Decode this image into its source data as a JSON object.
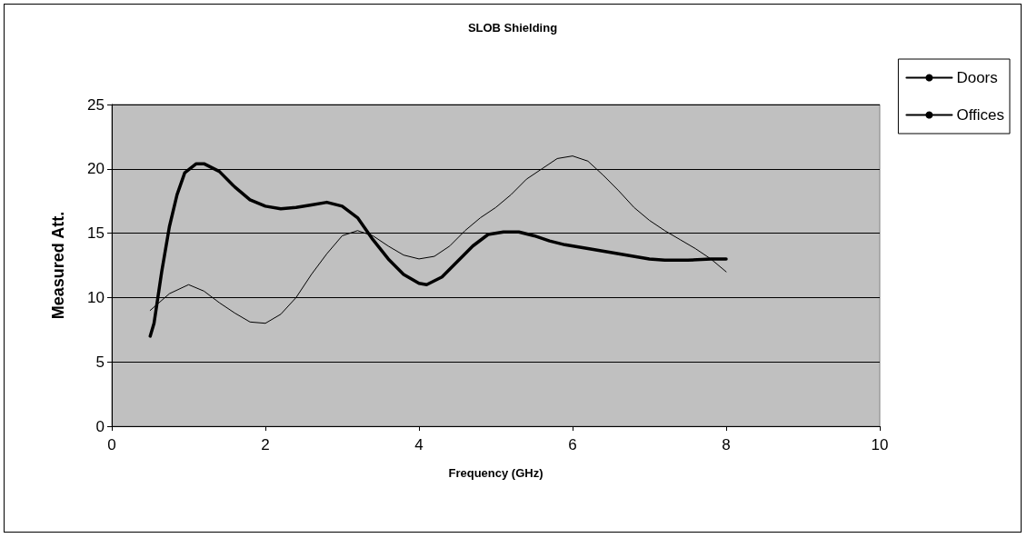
{
  "chart_data": {
    "type": "line",
    "title": "SLOB Shielding",
    "xlabel": "Frequency (GHz)",
    "ylabel": "Measured Att.",
    "xlim": [
      0,
      10
    ],
    "xticks": [
      0,
      2,
      4,
      6,
      8,
      10
    ],
    "ylim": [
      0,
      25
    ],
    "yticks": [
      0,
      5,
      10,
      15,
      20,
      25
    ],
    "grid": "y",
    "legend": "top right",
    "marker": "none",
    "line_style": "solid",
    "series": [
      {
        "name": "Doors",
        "color": "#000000",
        "x": [
          0.5,
          0.75,
          1.0,
          1.2,
          1.4,
          1.6,
          1.8,
          2.0,
          2.2,
          2.4,
          2.6,
          2.8,
          3.0,
          3.2,
          3.4,
          3.6,
          3.8,
          4.0,
          4.2,
          4.4,
          4.6,
          4.8,
          5.0,
          5.2,
          5.4,
          5.6,
          5.8,
          6.0,
          6.2,
          6.4,
          6.6,
          6.8,
          7.0,
          7.2,
          7.4,
          7.6,
          7.8,
          8.0
        ],
        "values": [
          9,
          10.3,
          11,
          10.5,
          9.6,
          8.8,
          8.1,
          8,
          8.7,
          10,
          11.8,
          13.4,
          14.8,
          15.2,
          14.8,
          14,
          13.3,
          13,
          13.2,
          14,
          15.2,
          16.2,
          17,
          18,
          19.2,
          20,
          20.8,
          21,
          20.6,
          19.5,
          18.3,
          17,
          16,
          15.2,
          14.5,
          13.8,
          13,
          12
        ]
      },
      {
        "name": "Offices",
        "color": "#000000",
        "x": [
          0.5,
          0.55,
          0.65,
          0.75,
          0.85,
          0.95,
          1.1,
          1.2,
          1.4,
          1.6,
          1.8,
          2.0,
          2.2,
          2.4,
          2.6,
          2.8,
          3.0,
          3.2,
          3.4,
          3.6,
          3.8,
          4.0,
          4.1,
          4.3,
          4.5,
          4.7,
          4.9,
          5.1,
          5.3,
          5.5,
          5.7,
          5.9,
          6.2,
          6.6,
          7.0,
          7.2,
          7.5,
          7.8,
          8.0
        ],
        "values": [
          7,
          8,
          12,
          15.5,
          18,
          19.7,
          20.4,
          20.4,
          19.8,
          18.6,
          17.6,
          17.1,
          16.9,
          17,
          17.2,
          17.4,
          17.1,
          16.2,
          14.5,
          13,
          11.8,
          11.1,
          11,
          11.6,
          12.8,
          14,
          14.9,
          15.1,
          15.1,
          14.8,
          14.4,
          14.1,
          13.8,
          13.4,
          13,
          12.9,
          12.9,
          13,
          13
        ]
      }
    ]
  }
}
